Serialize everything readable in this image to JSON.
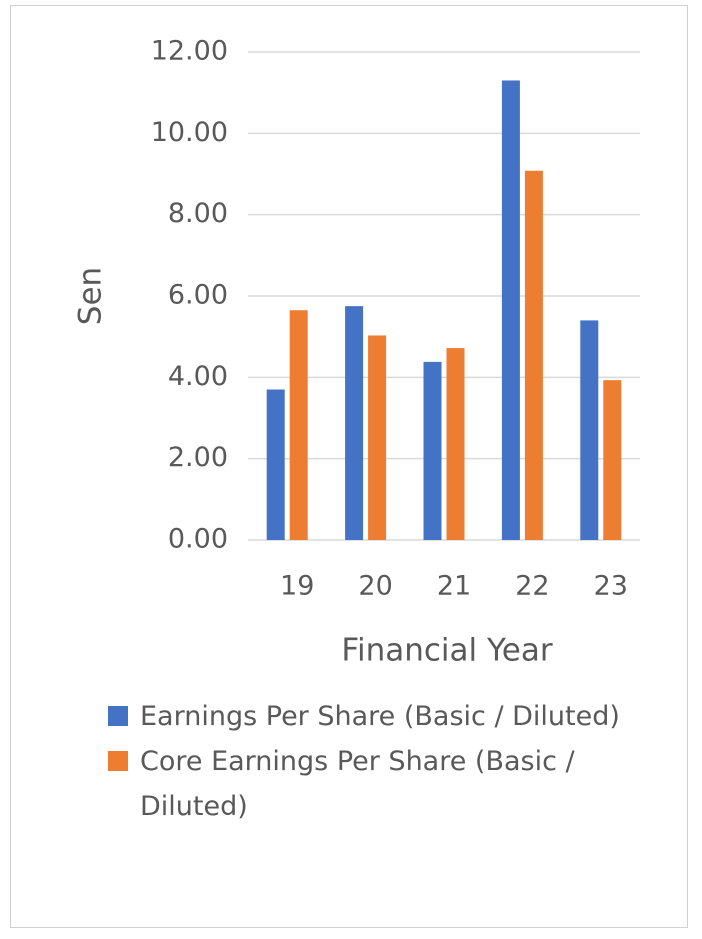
{
  "chart_data": {
    "type": "bar",
    "x_label": "Financial Year",
    "y_label": "Sen",
    "categories": [
      "19",
      "20",
      "21",
      "22",
      "23"
    ],
    "series": [
      {
        "name": "Earnings Per Share (Basic / Diluted)",
        "color": "#4472c4",
        "values": [
          3.7,
          5.75,
          4.38,
          11.3,
          5.4
        ]
      },
      {
        "name": "Core Earnings Per Share (Basic / Diluted)",
        "color": "#ed7d31",
        "values": [
          5.65,
          5.03,
          4.72,
          9.08,
          3.93
        ]
      }
    ],
    "ylim": [
      0,
      12
    ],
    "yticks": [
      {
        "value": 0,
        "label": "0.00"
      },
      {
        "value": 2,
        "label": "2.00"
      },
      {
        "value": 4,
        "label": "4.00"
      },
      {
        "value": 6,
        "label": "6.00"
      },
      {
        "value": 8,
        "label": "8.00"
      },
      {
        "value": 10,
        "label": "10.00"
      },
      {
        "value": 12,
        "label": "12.00"
      }
    ],
    "grid": true,
    "legend": "bottom"
  }
}
